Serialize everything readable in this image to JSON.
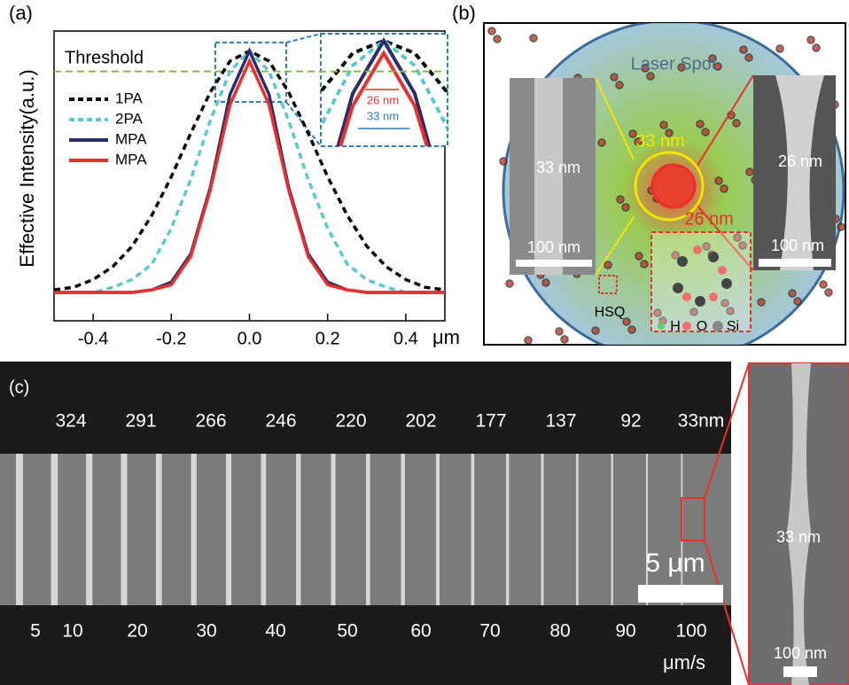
{
  "chart_data": {
    "type": "line",
    "panel_label": "(a)",
    "y_label": "Effective Intensity(a.u.)",
    "x_unit": "μm",
    "x": [
      -0.5,
      -0.45,
      -0.4,
      -0.35,
      -0.3,
      -0.25,
      -0.2,
      -0.15,
      -0.1,
      -0.05,
      0,
      0.05,
      0.1,
      0.15,
      0.2,
      0.25,
      0.3,
      0.35,
      0.4,
      0.45,
      0.5
    ],
    "series": [
      {
        "name": "1PA",
        "color": "#000000",
        "dashed": true,
        "values": [
          0.01,
          0.02,
          0.05,
          0.1,
          0.18,
          0.3,
          0.45,
          0.62,
          0.78,
          0.9,
          0.94,
          0.9,
          0.78,
          0.62,
          0.45,
          0.3,
          0.18,
          0.1,
          0.05,
          0.02,
          0.01
        ]
      },
      {
        "name": "2PA",
        "color": "#5bc8cf",
        "dashed": true,
        "values": [
          0,
          0,
          0,
          0.02,
          0.05,
          0.11,
          0.25,
          0.44,
          0.67,
          0.86,
          0.94,
          0.86,
          0.67,
          0.44,
          0.25,
          0.11,
          0.05,
          0.02,
          0,
          0,
          0
        ]
      },
      {
        "name": "MPA",
        "color": "#2b2d6b",
        "dashed": false,
        "values": [
          0,
          0,
          0,
          0,
          0,
          0.01,
          0.04,
          0.15,
          0.41,
          0.77,
          0.94,
          0.77,
          0.41,
          0.15,
          0.04,
          0.01,
          0,
          0,
          0,
          0,
          0
        ]
      },
      {
        "name": "MPA",
        "color": "#e8302c",
        "dashed": false,
        "values": [
          0,
          0,
          0,
          0,
          0,
          0.01,
          0.03,
          0.14,
          0.4,
          0.73,
          0.9,
          0.73,
          0.4,
          0.14,
          0.03,
          0.01,
          0,
          0,
          0,
          0,
          0
        ]
      }
    ],
    "threshold": {
      "label": "Threshold",
      "value": 0.86,
      "color": "#7fbf3f"
    },
    "xlim": [
      -0.5,
      0.5
    ],
    "xticks": [
      -0.4,
      -0.2,
      {
        "value": 0,
        "label": "0.0"
      },
      0.2,
      0.4
    ],
    "ylim": [
      0,
      1
    ],
    "inset": {
      "outer_width": "33 nm",
      "inner_width": "26 nm"
    }
  },
  "panel_b": {
    "label": "(b)",
    "spot": "Laser Spot",
    "left_width": "33 nm",
    "left_scale": "100 nm",
    "spot_outer": "33 nm",
    "spot_inner": "26 nm",
    "right_width": "26 nm",
    "right_scale": "100 nm",
    "resist": "HSQ",
    "atoms": [
      "H",
      "O",
      "Si"
    ]
  },
  "panel_c": {
    "label": "(c)",
    "widths": [
      324,
      291,
      266,
      246,
      220,
      202,
      177,
      137,
      92,
      "33nm"
    ],
    "speeds": [
      5,
      10,
      20,
      30,
      40,
      50,
      60,
      70,
      80,
      90,
      100
    ],
    "speed_unit": "μm/s",
    "scale": "5 μm",
    "inset_width": "33 nm",
    "inset_scale": "100 nm"
  }
}
